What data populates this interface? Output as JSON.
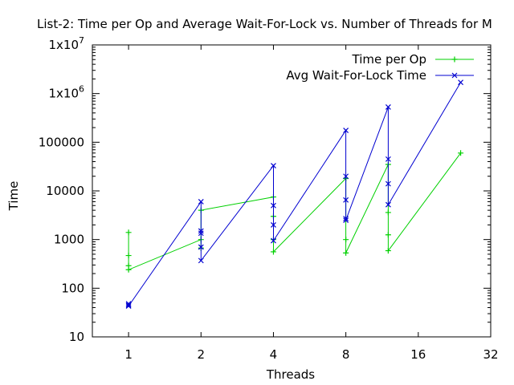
{
  "chart_data": {
    "type": "line",
    "title": "List-2: Time per Op and Average Wait-For-Lock vs. Number of Threads for M",
    "xlabel": "Threads",
    "ylabel": "Time",
    "x_scale": "log2",
    "y_scale": "log10",
    "xlim": [
      0.7071,
      32
    ],
    "ylim": [
      10,
      10000000
    ],
    "x_ticks": [
      "1",
      "2",
      "4",
      "8",
      "16",
      "32"
    ],
    "y_ticks": [
      "10",
      "100",
      "1000",
      "10000",
      "100000",
      "1x10",
      "1x10"
    ],
    "y_tick_exponents": [
      "",
      "",
      "",
      "",
      "",
      "6",
      "7"
    ],
    "grid": false,
    "legend_position": "top-right",
    "series": [
      {
        "name": "Time per Op",
        "color": "#00d000",
        "marker": "plus",
        "points": [
          [
            1,
            1400
          ],
          [
            1,
            470
          ],
          [
            1,
            290
          ],
          [
            1,
            240
          ],
          [
            2,
            1000
          ],
          [
            2,
            670
          ],
          [
            2,
            4000
          ],
          [
            4,
            7500
          ],
          [
            4,
            3000
          ],
          [
            4,
            1000
          ],
          [
            4,
            560
          ],
          [
            8,
            18000
          ],
          [
            8,
            1000
          ],
          [
            8,
            530
          ],
          [
            12,
            35000
          ],
          [
            12,
            3600
          ],
          [
            12,
            1250
          ],
          [
            12,
            590
          ],
          [
            24,
            60000
          ]
        ]
      },
      {
        "name": "Avg Wait-For-Lock Time",
        "color": "#0000d0",
        "marker": "cross",
        "points": [
          [
            1,
            48
          ],
          [
            1,
            45
          ],
          [
            1,
            43
          ],
          [
            2,
            6000
          ],
          [
            2,
            1500
          ],
          [
            2,
            1350
          ],
          [
            2,
            700
          ],
          [
            2,
            370
          ],
          [
            4,
            33000
          ],
          [
            4,
            5000
          ],
          [
            4,
            2000
          ],
          [
            4,
            950
          ],
          [
            8,
            175000
          ],
          [
            8,
            20000
          ],
          [
            8,
            6500
          ],
          [
            8,
            2700
          ],
          [
            8,
            2500
          ],
          [
            12,
            530000
          ],
          [
            12,
            45000
          ],
          [
            12,
            14000
          ],
          [
            12,
            5200
          ],
          [
            24,
            1700000
          ]
        ]
      }
    ]
  }
}
